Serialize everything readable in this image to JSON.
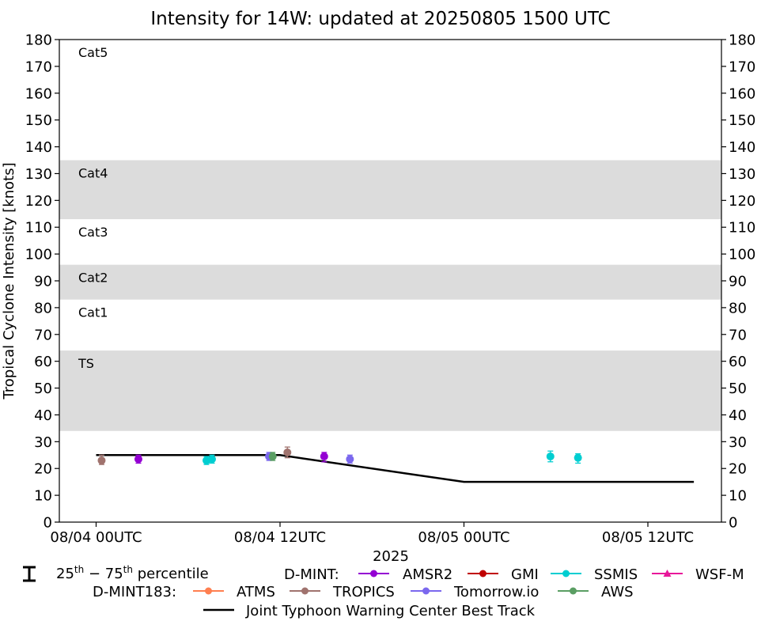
{
  "chart_data": {
    "type": "scatter",
    "title": "Intensity for 14W: updated at 20250805 1500 UTC",
    "ylabel": "Tropical Cyclone Intensity [knots]",
    "xlabel": "2025",
    "ylim": [
      0,
      180
    ],
    "xlim_hours": [
      -2,
      34
    ],
    "yticks": [
      "0",
      "10",
      "20",
      "30",
      "40",
      "50",
      "60",
      "70",
      "80",
      "90",
      "100",
      "110",
      "120",
      "130",
      "140",
      "150",
      "160",
      "170",
      "180"
    ],
    "xticks": [
      {
        "hour": 0,
        "label": "08/04 00UTC"
      },
      {
        "hour": 10,
        "label": "08/04 12UTC"
      },
      {
        "hour": 20,
        "label": "08/05 00UTC"
      },
      {
        "hour": 30,
        "label": "08/05 12UTC"
      }
    ],
    "category_bands": [
      {
        "label": "TS",
        "min": 34,
        "max": 64,
        "shaded": true
      },
      {
        "label": "Cat1",
        "min": 64,
        "max": 83,
        "shaded": false
      },
      {
        "label": "Cat2",
        "min": 83,
        "max": 96,
        "shaded": true
      },
      {
        "label": "Cat3",
        "min": 96,
        "max": 113,
        "shaded": false
      },
      {
        "label": "Cat4",
        "min": 113,
        "max": 135,
        "shaded": true
      },
      {
        "label": "Cat5",
        "min": 135,
        "max": 180,
        "shaded": false
      }
    ],
    "best_track": {
      "name": "Joint Typhoon Warning Center Best Track",
      "color": "#000000",
      "x": [
        0,
        10,
        20,
        32.5
      ],
      "y": [
        25,
        25,
        15,
        15
      ]
    },
    "series": [
      {
        "name": "AMSR2",
        "group": "D-MINT",
        "color": "#9400d3",
        "marker": "circle",
        "points": [
          {
            "x": 2.3,
            "y": 23.5,
            "lo": 22,
            "hi": 25
          },
          {
            "x": 12.4,
            "y": 24.5,
            "lo": 22.5,
            "hi": 26
          }
        ]
      },
      {
        "name": "GMI",
        "group": "D-MINT",
        "color": "#c00000",
        "marker": "circle",
        "points": []
      },
      {
        "name": "SSMIS",
        "group": "D-MINT",
        "color": "#00ced1",
        "marker": "circle",
        "points": [
          {
            "x": 6.0,
            "y": 23,
            "lo": 21.5,
            "hi": 24.5
          },
          {
            "x": 6.3,
            "y": 23.5,
            "lo": 22,
            "hi": 25
          },
          {
            "x": 24.7,
            "y": 24.5,
            "lo": 22.5,
            "hi": 26.5
          },
          {
            "x": 26.2,
            "y": 24,
            "lo": 22,
            "hi": 25.5
          }
        ]
      },
      {
        "name": "WSF-M",
        "group": "D-MINT",
        "color": "#e8179a",
        "marker": "triangle",
        "points": []
      },
      {
        "name": "ATMS",
        "group": "D-MINT183",
        "color": "#ff7f50",
        "marker": "circle",
        "points": []
      },
      {
        "name": "TROPICS",
        "group": "D-MINT183",
        "color": "#a0736e",
        "marker": "circle",
        "points": [
          {
            "x": 0.3,
            "y": 23,
            "lo": 21.5,
            "hi": 25
          },
          {
            "x": 10.4,
            "y": 26,
            "lo": 24,
            "hi": 28
          }
        ]
      },
      {
        "name": "Tomorrow.io",
        "group": "D-MINT183",
        "color": "#7b68ee",
        "marker": "circle",
        "points": [
          {
            "x": 9.4,
            "y": 24.5,
            "lo": 23,
            "hi": 26
          },
          {
            "x": 13.8,
            "y": 23.5,
            "lo": 22,
            "hi": 25
          }
        ]
      },
      {
        "name": "AWS",
        "group": "D-MINT183",
        "color": "#5a9e63",
        "marker": "circle",
        "points": [
          {
            "x": 9.6,
            "y": 24.5,
            "lo": 23,
            "hi": 26
          }
        ]
      }
    ]
  },
  "legend": {
    "percentile_label": "25th − 75th percentile",
    "dmint_label": "D-MINT:",
    "dmint183_label": "D-MINT183:",
    "best_track_label": "Joint Typhoon Warning Center Best Track"
  }
}
